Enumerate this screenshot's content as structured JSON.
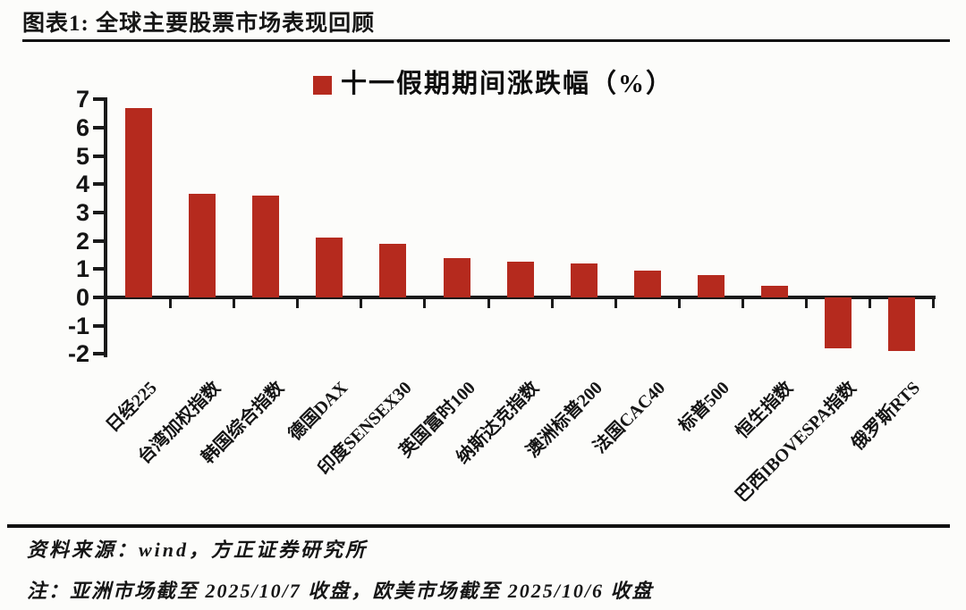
{
  "header": {
    "title": "图表1: 全球主要股票市场表现回顾"
  },
  "chart_data": {
    "type": "bar",
    "title": "图表1: 全球主要股票市场表现回顾",
    "legend": "十一假期期间涨跌幅（%）",
    "legend_position": "top-center",
    "categories": [
      "日经225",
      "台湾加权指数",
      "韩国综合指数",
      "德国DAX",
      "印度SENSEX30",
      "英国富时100",
      "纳斯达克指数",
      "澳洲标普200",
      "法国CAC40",
      "标普500",
      "恒生指数",
      "巴西IBOVESPA指数",
      "俄罗斯RTS"
    ],
    "values": [
      6.7,
      3.65,
      3.6,
      2.1,
      1.9,
      1.4,
      1.25,
      1.2,
      0.95,
      0.8,
      0.4,
      -1.8,
      -1.9
    ],
    "y_ticks": [
      7,
      6,
      5,
      4,
      3,
      2,
      1,
      0,
      -1,
      -2
    ],
    "ylim": [
      -2,
      7
    ],
    "xlabel": "",
    "ylabel": "",
    "grid": false,
    "bar_color": "#b52a1e",
    "axis_color": "#1a1a1a"
  },
  "footer": {
    "source": "资料来源：wind，方正证券研究所",
    "note": "注：亚洲市场截至 2025/10/7 收盘，欧美市场截至 2025/10/6 收盘"
  }
}
